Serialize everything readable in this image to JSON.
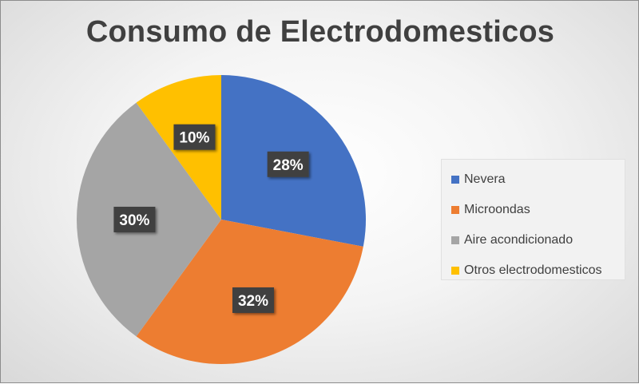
{
  "chart_data": {
    "type": "pie",
    "title": "Consumo de Electrodomesticos",
    "categories": [
      "Nevera",
      "Microondas",
      "Aire acondicionado",
      "Otros electrodomesticos"
    ],
    "values": [
      28,
      32,
      30,
      10
    ],
    "data_labels": [
      "28%",
      "32%",
      "30%",
      "10%"
    ],
    "colors": [
      "#4472C4",
      "#ED7D31",
      "#A5A5A5",
      "#FFC000"
    ],
    "legend_position": "right"
  }
}
